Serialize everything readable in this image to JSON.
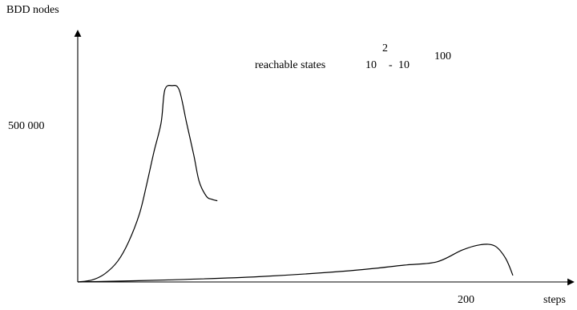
{
  "chart_data": {
    "type": "line",
    "title": "",
    "xlabel": "steps",
    "ylabel": "BDD nodes",
    "x_ticks": [
      "200"
    ],
    "y_ticks": [
      "500 000"
    ],
    "annotation": {
      "text": "reachable states",
      "base1": "10",
      "exp1": "2",
      "dash": "-",
      "base2": "10",
      "exp2": "100"
    },
    "grid": false,
    "legend": "none",
    "xlim": [
      0,
      240
    ],
    "ylim": [
      0,
      700000
    ],
    "line_color": "#000000",
    "series": [
      {
        "x": [
          0,
          8,
          15,
          22,
          28,
          34,
          38,
          42,
          46,
          48,
          52,
          56,
          60,
          64,
          67,
          71,
          74,
          77
        ],
        "y": [
          0,
          7000,
          28000,
          70000,
          135000,
          230000,
          330000,
          440000,
          540000,
          650000,
          665000,
          650000,
          540000,
          430000,
          340000,
          290000,
          280000,
          275000
        ]
      },
      {
        "x": [
          0,
          50,
          100,
          150,
          180,
          198,
          212,
          222,
          230,
          236,
          240
        ],
        "y": [
          0,
          7000,
          18000,
          38000,
          57000,
          68000,
          108000,
          126000,
          122000,
          80000,
          22000
        ]
      }
    ]
  }
}
